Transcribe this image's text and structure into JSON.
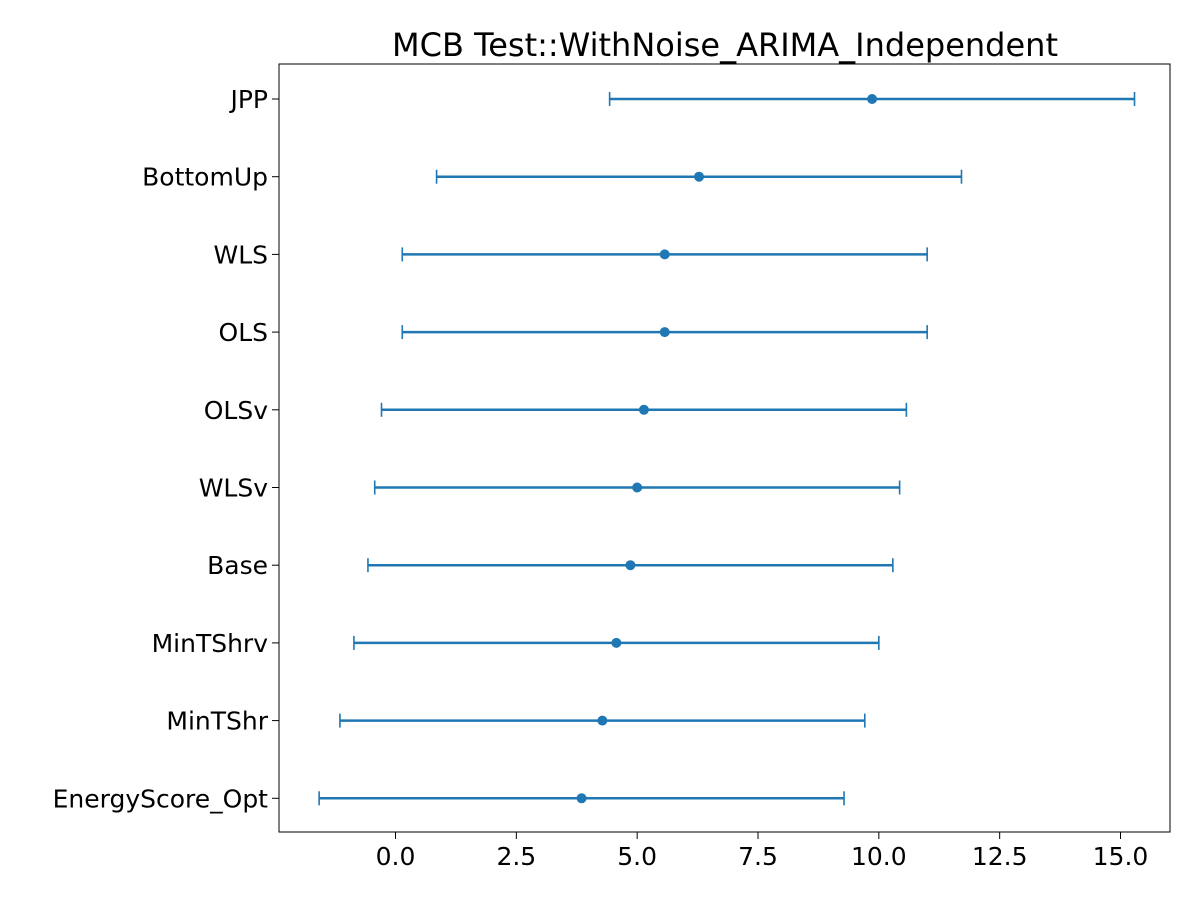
{
  "chart_data": {
    "type": "errorbar",
    "title": "MCB Test::WithNoise_ARIMA_Independent",
    "xlabel": "",
    "ylabel": "",
    "xlim": [
      -2.5,
      16.1
    ],
    "grid": false,
    "series_color": "#1f77b4",
    "xticks": [
      "0.0",
      "2.5",
      "5.0",
      "7.5",
      "10.0",
      "12.5",
      "15.0"
    ],
    "xtick_values": [
      0.0,
      2.5,
      5.0,
      7.5,
      10.0,
      12.5,
      15.0
    ],
    "rows": [
      {
        "name": "JPP",
        "mean": 9.86,
        "lower": 4.43,
        "upper": 15.29
      },
      {
        "name": "BottomUp",
        "mean": 6.28,
        "lower": 0.85,
        "upper": 11.71
      },
      {
        "name": "WLS",
        "mean": 5.57,
        "lower": 0.14,
        "upper": 11.0
      },
      {
        "name": "OLS",
        "mean": 5.57,
        "lower": 0.14,
        "upper": 11.0
      },
      {
        "name": "OLSv",
        "mean": 5.14,
        "lower": -0.29,
        "upper": 10.57
      },
      {
        "name": "WLSv",
        "mean": 5.0,
        "lower": -0.43,
        "upper": 10.43
      },
      {
        "name": "Base",
        "mean": 4.86,
        "lower": -0.57,
        "upper": 10.29
      },
      {
        "name": "MinTShrv",
        "mean": 4.57,
        "lower": -0.86,
        "upper": 10.0
      },
      {
        "name": "MinTShr",
        "mean": 4.28,
        "lower": -1.15,
        "upper": 9.71
      },
      {
        "name": "EnergyScore_Opt",
        "mean": 3.85,
        "lower": -1.58,
        "upper": 9.28
      }
    ]
  }
}
